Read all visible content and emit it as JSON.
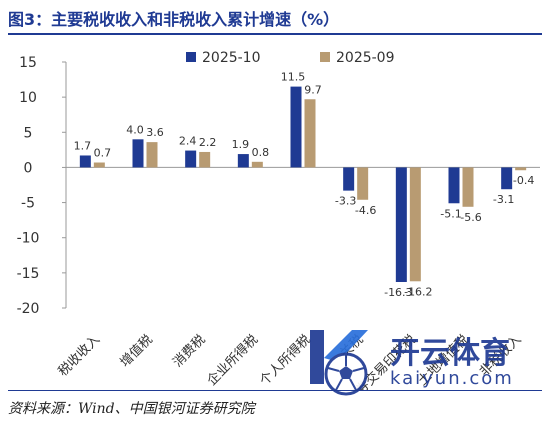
{
  "page": {
    "title": "图3：主要税收收入和非税收入累计增速（%）",
    "source": "资料来源：Wind、中国银河证券研究院"
  },
  "watermark": {
    "text": "开云体育",
    "url": "kaiyun.com"
  },
  "colors": {
    "series_2025_10": "#1f3a93",
    "series_2025_09": "#b89b72",
    "accent": "#1f3a93"
  },
  "chart_data": {
    "type": "bar",
    "title": "",
    "xlabel": "",
    "ylabel": "",
    "ylim": [
      -20,
      15
    ],
    "yticks": [
      15,
      10,
      5,
      0,
      -5,
      -10,
      -15,
      -20
    ],
    "legend_position": "top",
    "grid": false,
    "categories": [
      "税收收入",
      "增值税",
      "消费税",
      "企业所得税",
      "个人所得税",
      "关税",
      "证券交易印花税",
      "土地增值税",
      "非税收入"
    ],
    "series": [
      {
        "name": "2025-10",
        "values": [
          1.7,
          4.0,
          2.4,
          1.9,
          11.5,
          -3.3,
          -16.3,
          -5.1,
          -3.1
        ]
      },
      {
        "name": "2025-09",
        "values": [
          0.7,
          3.6,
          2.2,
          0.8,
          9.7,
          -4.6,
          -16.2,
          -5.6,
          -0.4
        ]
      }
    ]
  }
}
